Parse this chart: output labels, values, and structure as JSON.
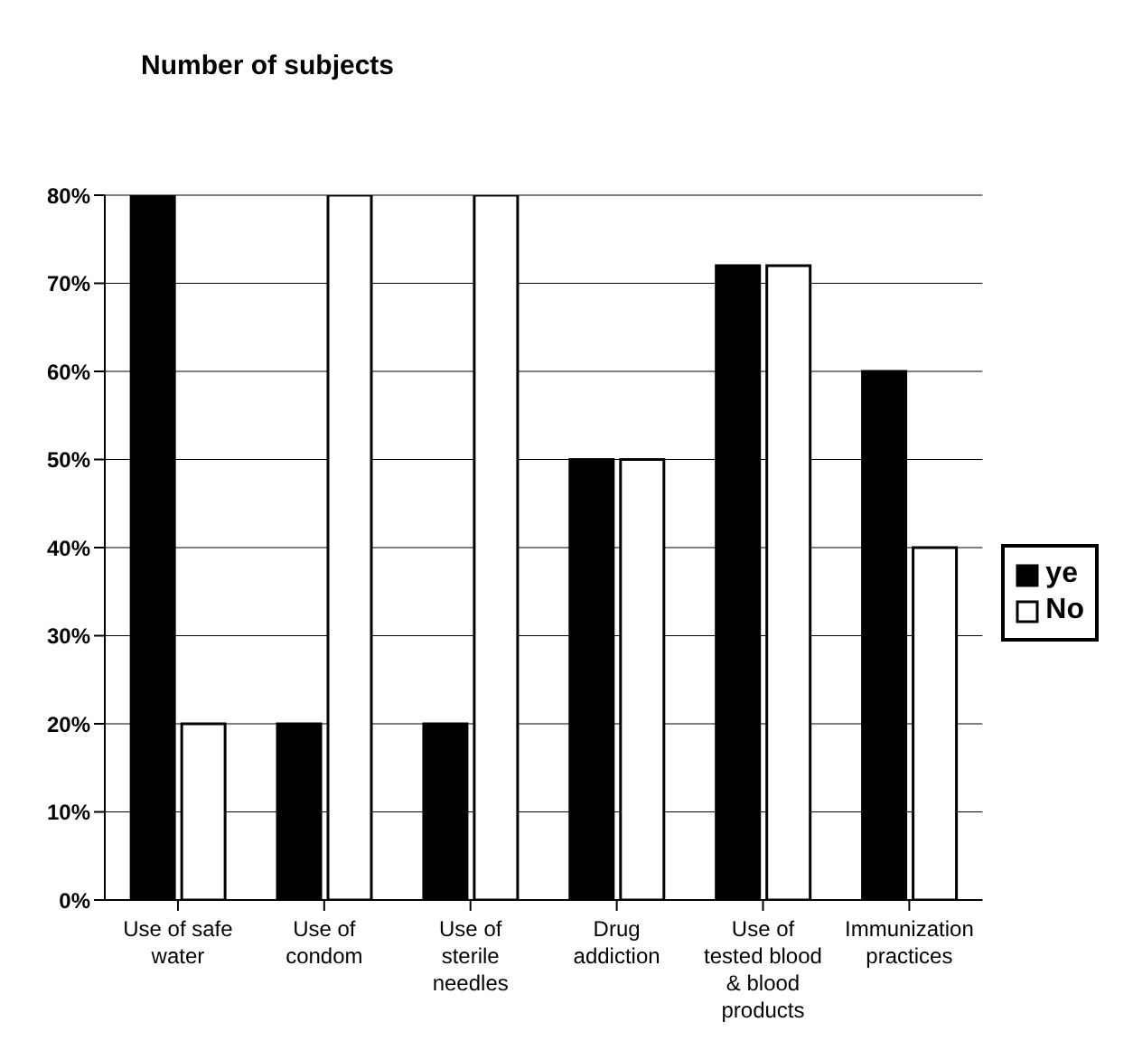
{
  "chart_data": {
    "type": "bar",
    "title": "Number of subjects",
    "categories": [
      "Use of safe water",
      "Use of condom",
      "Use of sterile needles",
      "Drug addiction",
      "Use of tested blood & blood products",
      "Immunization practices"
    ],
    "series": [
      {
        "name": "ye",
        "color": "#000000",
        "values": [
          80,
          20,
          20,
          50,
          72,
          60
        ]
      },
      {
        "name": "No",
        "color": "#ffffff",
        "values": [
          20,
          80,
          80,
          50,
          72,
          40
        ]
      }
    ],
    "ylim": [
      0,
      80
    ],
    "yticks": [
      {
        "value": 0,
        "label": "0%"
      },
      {
        "value": 10,
        "label": "10%"
      },
      {
        "value": 20,
        "label": "20%"
      },
      {
        "value": 30,
        "label": "30%"
      },
      {
        "value": 40,
        "label": "40%"
      },
      {
        "value": 50,
        "label": "50%"
      },
      {
        "value": 60,
        "label": "60%"
      },
      {
        "value": 70,
        "label": "70%"
      },
      {
        "value": 80,
        "label": "80%"
      }
    ],
    "grid": "y",
    "legend": "right"
  }
}
